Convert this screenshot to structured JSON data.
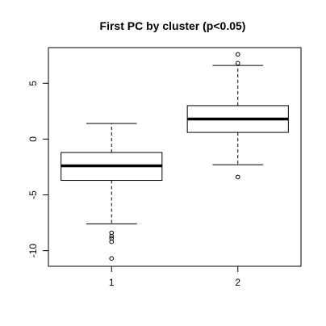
{
  "chart_data": {
    "type": "box",
    "title": "First PC by cluster (p<0.05)",
    "xlabel": "",
    "ylabel": "",
    "categories": [
      "1",
      "2"
    ],
    "y_ticks": [
      {
        "value": 5,
        "label": "5"
      },
      {
        "value": 0,
        "label": "0"
      },
      {
        "value": -5,
        "label": "-5"
      },
      {
        "value": -10,
        "label": "-10"
      }
    ],
    "ylim": [
      -11.4,
      8.2
    ],
    "grid": false,
    "legend": "none",
    "boxes": [
      {
        "category": "1",
        "whisker_low": -7.6,
        "q1": -3.7,
        "median": -2.4,
        "q3": -1.2,
        "whisker_high": 1.4,
        "outliers": [
          -8.4,
          -8.7,
          -8.9,
          -9.2,
          -10.7
        ]
      },
      {
        "category": "2",
        "whisker_low": -2.3,
        "q1": 0.6,
        "median": 1.8,
        "q3": 3.0,
        "whisker_high": 6.6,
        "outliers": [
          -3.4,
          6.8,
          7.6
        ]
      }
    ]
  },
  "colors": {
    "background": "#ffffff",
    "stroke": "#000000"
  }
}
